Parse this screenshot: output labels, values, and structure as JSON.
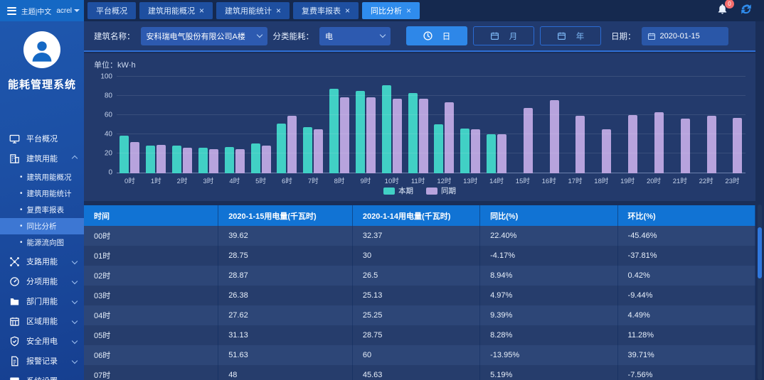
{
  "topbar": {
    "theme_label": "主题|中文",
    "user_name": "acrel",
    "tabs": [
      {
        "label": "平台概况",
        "closable": false,
        "active": false
      },
      {
        "label": "建筑用能概况",
        "closable": true,
        "active": false
      },
      {
        "label": "建筑用能统计",
        "closable": true,
        "active": false
      },
      {
        "label": "复费率报表",
        "closable": true,
        "active": false
      },
      {
        "label": "同比分析",
        "closable": true,
        "active": true
      }
    ],
    "bell_badge": "0"
  },
  "sidebar": {
    "app_title": "能耗管理系统",
    "items": [
      {
        "label": "平台概况",
        "icon": "monitor-icon"
      },
      {
        "label": "建筑用能",
        "icon": "building-icon",
        "expanded": true,
        "children": [
          {
            "label": "建筑用能概况",
            "active": false
          },
          {
            "label": "建筑用能统计",
            "active": false
          },
          {
            "label": "复费率报表",
            "active": false
          },
          {
            "label": "同比分析",
            "active": true
          },
          {
            "label": "能源流向图",
            "active": false
          }
        ]
      },
      {
        "label": "支路用能",
        "icon": "branch-icon",
        "collapsed": true
      },
      {
        "label": "分项用能",
        "icon": "gauge-icon",
        "collapsed": true
      },
      {
        "label": "部门用能",
        "icon": "folder-icon",
        "collapsed": true
      },
      {
        "label": "区域用能",
        "icon": "region-icon",
        "collapsed": true
      },
      {
        "label": "安全用电",
        "icon": "shield-icon",
        "collapsed": true
      },
      {
        "label": "报警记录",
        "icon": "document-icon",
        "collapsed": true
      },
      {
        "label": "系统设置",
        "icon": "settings-icon",
        "collapsed": true
      }
    ]
  },
  "filters": {
    "building_label": "建筑名称：",
    "building_value": "安科瑞电气股份有限公司A楼",
    "energy_label": "分类能耗：",
    "energy_value": "电",
    "period_buttons": [
      {
        "label": "日",
        "icon": "clock-icon",
        "active": true
      },
      {
        "label": "月",
        "icon": "calendar-icon",
        "active": false
      },
      {
        "label": "年",
        "icon": "calendar-icon",
        "active": false
      }
    ],
    "date_label": "日期：",
    "date_value": "2020-01-15"
  },
  "chart": {
    "unit_label": "单位：kW·h"
  },
  "chart_data": {
    "type": "bar",
    "title": "单位：kW·h",
    "categories": [
      "0时",
      "1时",
      "2时",
      "3时",
      "4时",
      "5时",
      "6时",
      "7时",
      "8时",
      "9时",
      "10时",
      "11时",
      "12时",
      "13时",
      "14时",
      "15时",
      "16时",
      "17时",
      "18时",
      "19时",
      "20时",
      "21时",
      "22时",
      "23时"
    ],
    "series": [
      {
        "name": "本期",
        "color": "#41d0c5",
        "values": [
          39.62,
          28.75,
          28.87,
          26.38,
          27.62,
          31.13,
          51.63,
          48,
          88,
          86,
          92,
          84,
          51,
          47,
          41,
          null,
          null,
          null,
          null,
          null,
          null,
          null,
          null,
          null
        ]
      },
      {
        "name": "同期",
        "color": "#b7a3dd",
        "values": [
          32.37,
          30,
          26.5,
          25.13,
          25.25,
          28.75,
          60,
          45.63,
          79,
          79,
          78,
          78,
          74,
          46,
          41,
          68,
          76,
          60,
          46,
          61,
          64,
          57,
          60,
          58
        ]
      }
    ],
    "ylim": [
      0,
      100
    ],
    "yticks": [
      0,
      20,
      40,
      60,
      80,
      100
    ],
    "grid": true,
    "legend_position": "bottom"
  },
  "table": {
    "headers": [
      "时间",
      "2020-1-15用电量(千瓦时)",
      "2020-1-14用电量(千瓦时)",
      "同比(%)",
      "环比(%)"
    ],
    "rows": [
      [
        "00时",
        "39.62",
        "32.37",
        "22.40%",
        "-45.46%"
      ],
      [
        "01时",
        "28.75",
        "30",
        "-4.17%",
        "-37.81%"
      ],
      [
        "02时",
        "28.87",
        "26.5",
        "8.94%",
        "0.42%"
      ],
      [
        "03时",
        "26.38",
        "25.13",
        "4.97%",
        "-9.44%"
      ],
      [
        "04时",
        "27.62",
        "25.25",
        "9.39%",
        "4.49%"
      ],
      [
        "05时",
        "31.13",
        "28.75",
        "8.28%",
        "11.28%"
      ],
      [
        "06时",
        "51.63",
        "60",
        "-13.95%",
        "39.71%"
      ],
      [
        "07时",
        "48",
        "45.63",
        "5.19%",
        "-7.56%"
      ]
    ]
  }
}
